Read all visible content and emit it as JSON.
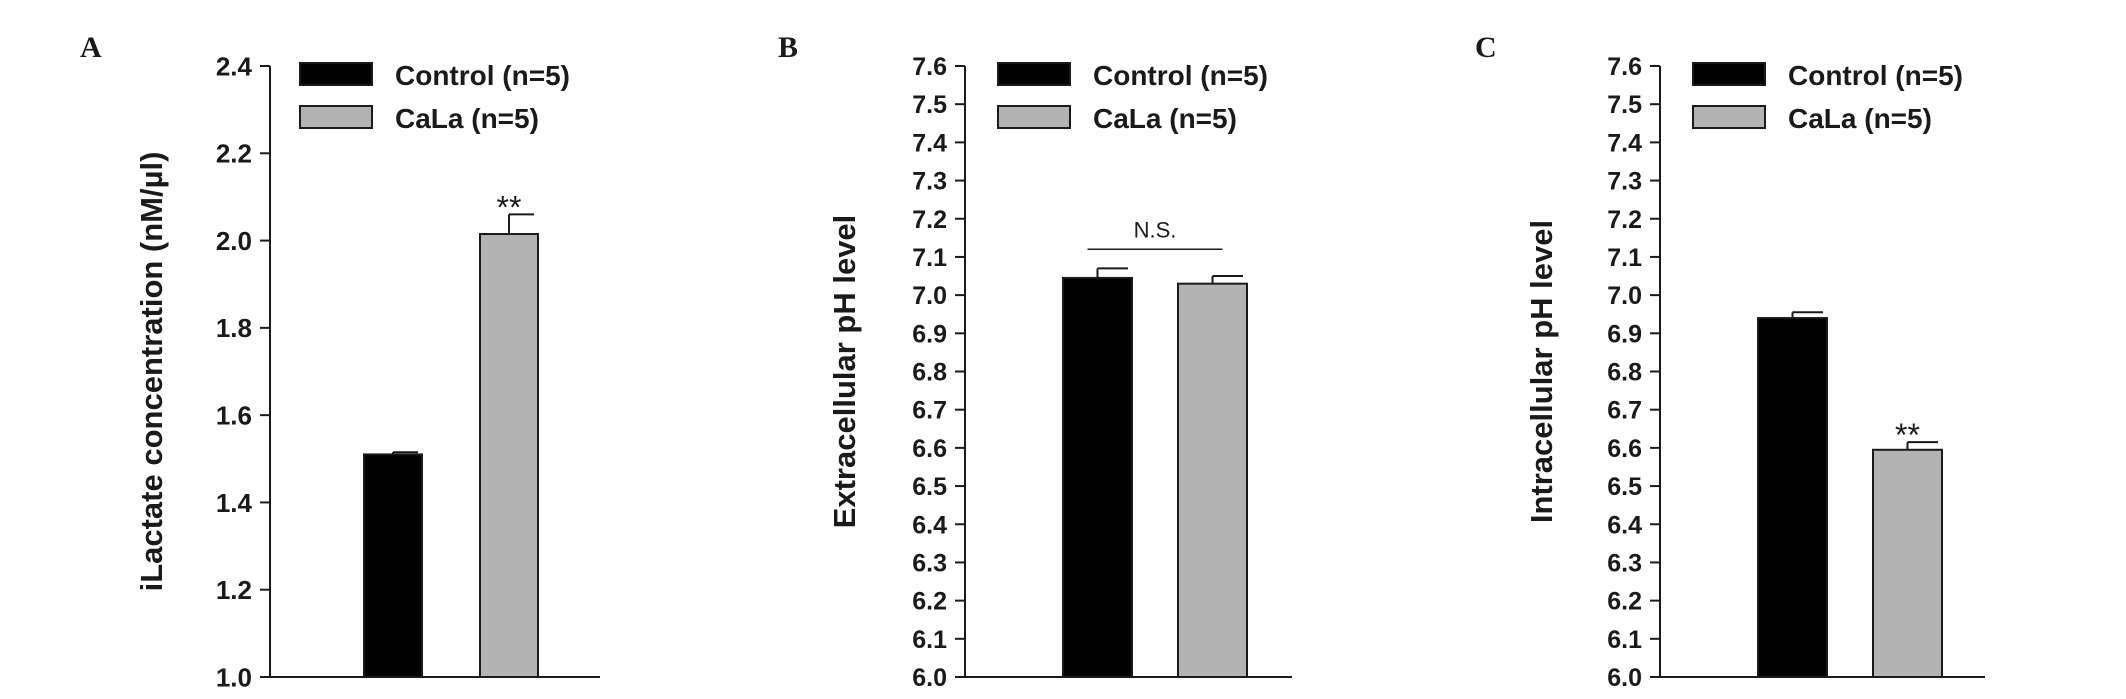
{
  "chart_data": [
    {
      "panel": "A",
      "type": "bar",
      "categories": [
        "Control (n=5)",
        "CaLa (n=5)"
      ],
      "values": [
        1.51,
        2.015
      ],
      "errors": [
        0.005,
        0.045
      ],
      "colors": [
        "#000000",
        "#b3b3b3"
      ],
      "ylabel": "iLactate concentration (nM/µl)",
      "ylim": [
        1.0,
        2.4
      ],
      "yticks": [
        "1.0",
        "1.2",
        "1.4",
        "1.6",
        "1.8",
        "2.0",
        "2.2",
        "2.4"
      ],
      "legend": [
        "Control (n=5)",
        "CaLa (n=5)"
      ],
      "legend_position": "top-left",
      "annotation": {
        "text": "**",
        "over": "CaLa (n=5)"
      }
    },
    {
      "panel": "B",
      "type": "bar",
      "categories": [
        "Control (n=5)",
        "CaLa (n=5)"
      ],
      "values": [
        7.045,
        7.03
      ],
      "errors": [
        0.025,
        0.02
      ],
      "colors": [
        "#000000",
        "#b3b3b3"
      ],
      "ylabel": "Extracellular pH level",
      "ylim": [
        6.0,
        7.6
      ],
      "yticks": [
        "6.0",
        "6.1",
        "6.2",
        "6.3",
        "6.4",
        "6.5",
        "6.6",
        "6.7",
        "6.8",
        "6.9",
        "7.0",
        "7.1",
        "7.2",
        "7.3",
        "7.4",
        "7.5",
        "7.6"
      ],
      "legend": [
        "Control (n=5)",
        "CaLa (n=5)"
      ],
      "legend_position": "top-left",
      "annotation": {
        "text": "N.S.",
        "over": "both",
        "bracket_y": 7.12
      }
    },
    {
      "panel": "C",
      "type": "bar",
      "categories": [
        "Control (n=5)",
        "CaLa (n=5)"
      ],
      "values": [
        6.94,
        6.595
      ],
      "errors": [
        0.015,
        0.02
      ],
      "colors": [
        "#000000",
        "#b3b3b3"
      ],
      "ylabel": "Intracellular pH level",
      "ylim": [
        6.0,
        7.6
      ],
      "yticks": [
        "6.0",
        "6.1",
        "6.2",
        "6.3",
        "6.4",
        "6.5",
        "6.6",
        "6.7",
        "6.8",
        "6.9",
        "7.0",
        "7.1",
        "7.2",
        "7.3",
        "7.4",
        "7.5",
        "7.6"
      ],
      "legend": [
        "Control (n=5)",
        "CaLa (n=5)"
      ],
      "legend_position": "top-left",
      "annotation": {
        "text": "**",
        "over": "CaLa (n=5)"
      }
    }
  ]
}
